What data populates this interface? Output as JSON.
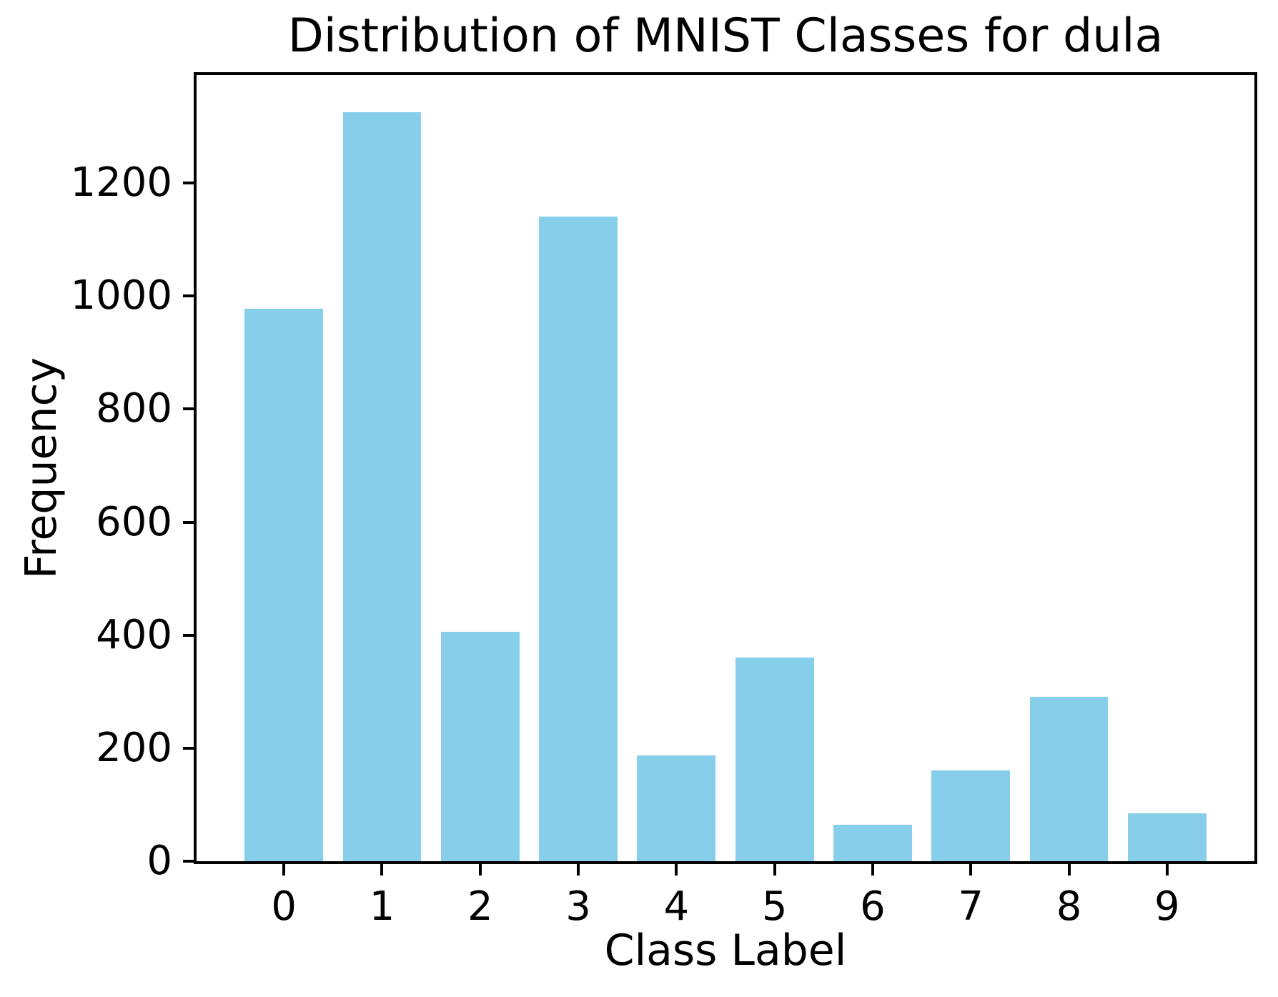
{
  "chart_data": {
    "type": "bar",
    "title": "Distribution of MNIST Classes for dula",
    "xlabel": "Class Label",
    "ylabel": "Frequency",
    "categories": [
      "0",
      "1",
      "2",
      "3",
      "4",
      "5",
      "6",
      "7",
      "8",
      "9"
    ],
    "values": [
      978,
      1325,
      406,
      1141,
      187,
      360,
      65,
      161,
      291,
      85
    ],
    "yticks": [
      0,
      200,
      400,
      600,
      800,
      1000,
      1200
    ],
    "ylim": [
      0,
      1391
    ],
    "xlim": [
      -0.89,
      9.89
    ],
    "bar_width": 0.8,
    "bar_color": "#87CEEB",
    "text_color": "#000000",
    "grid": false,
    "legend": "none",
    "background": "#ffffff"
  }
}
